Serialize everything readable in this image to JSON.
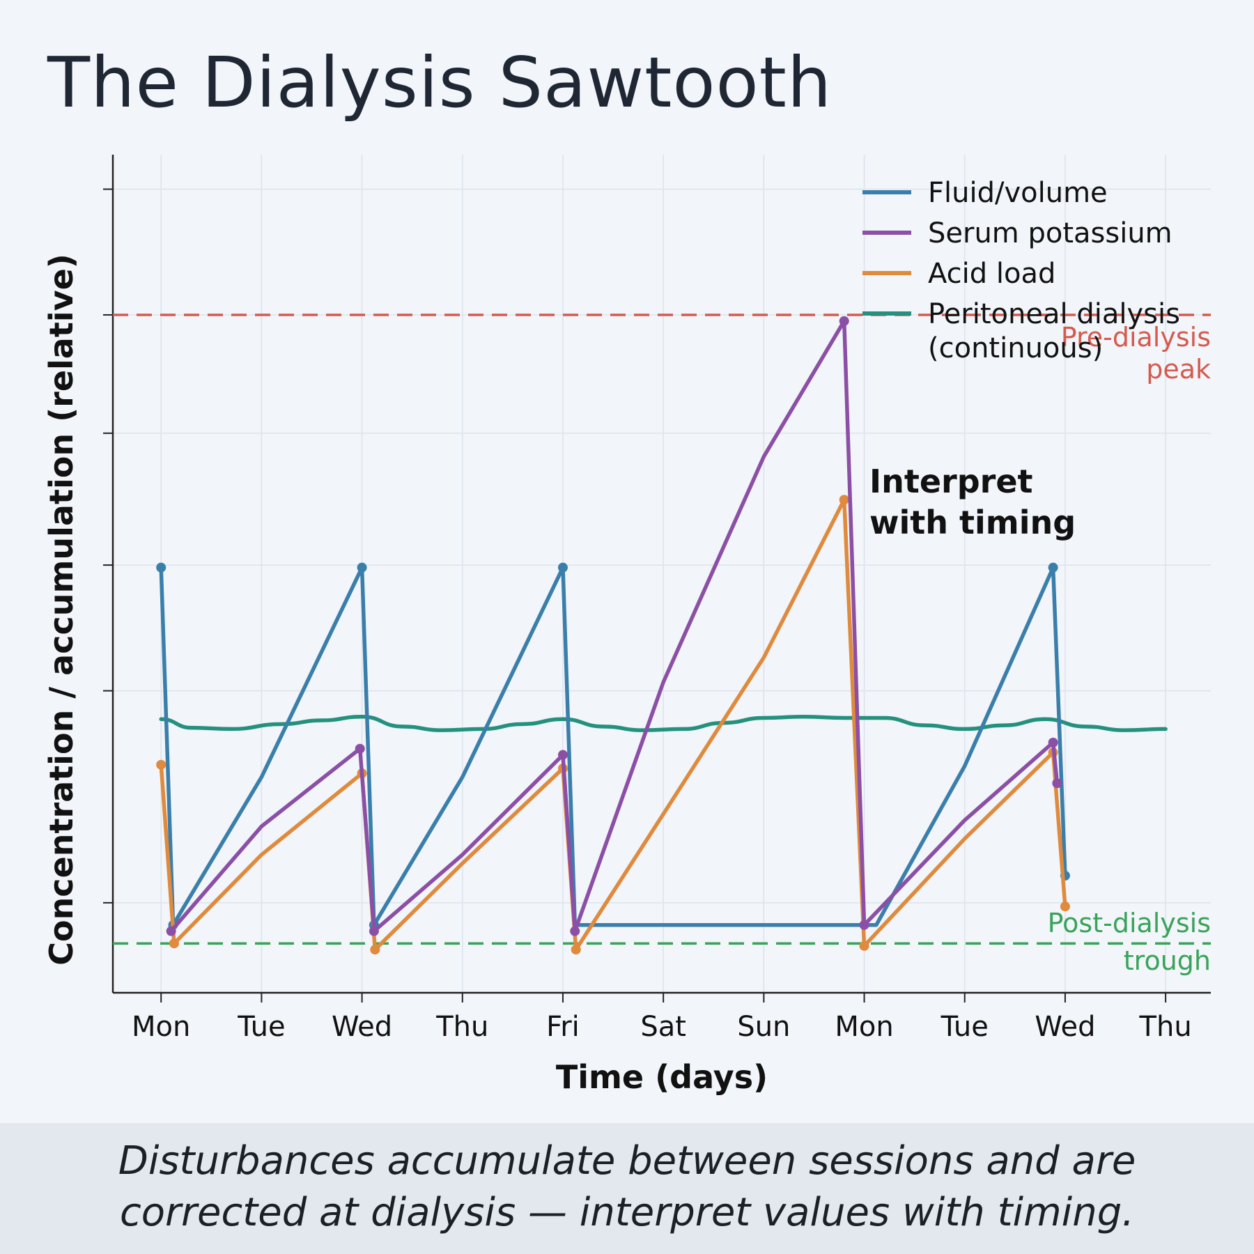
{
  "title": "The Dialysis Sawtooth",
  "caption": {
    "line1": "Disturbances accumulate between sessions and are",
    "line2": "corrected at dialysis — interpret values with timing."
  },
  "colors": {
    "fluid": "#3a7fab",
    "potassium": "#8b4fa6",
    "acid": "#df8a3c",
    "peritoneal": "#24917e",
    "peak": "#d55a4e",
    "trough": "#39a35a"
  },
  "chart_data": {
    "type": "line",
    "xlabel": "Time (days)",
    "ylabel": "Concentration / accumulation (relative)",
    "categories": [
      "Mon",
      "Tue",
      "Wed",
      "Thu",
      "Fri",
      "Sat",
      "Sun",
      "Mon",
      "Tue",
      "Wed",
      "Thu"
    ],
    "xlim": [
      -0.48,
      10.45
    ],
    "ylim": [
      -0.5,
      6.3
    ],
    "grid": true,
    "legend_position": "top-right",
    "series": [
      {
        "name": "Fluid/volume",
        "color_key": "fluid",
        "points": [
          [
            0,
            2.95
          ],
          [
            0.12,
            0.05
          ],
          [
            1,
            1.25
          ],
          [
            2,
            2.95
          ],
          [
            2.12,
            0.05
          ],
          [
            3,
            1.25
          ],
          [
            4,
            2.95
          ],
          [
            4.12,
            0.05
          ],
          [
            7,
            0.05
          ],
          [
            7.12,
            0.05
          ],
          [
            8,
            1.34
          ],
          [
            8.88,
            2.95
          ],
          [
            9,
            0.45
          ]
        ]
      },
      {
        "name": "Serum potassium",
        "color_key": "potassium",
        "points": [
          [
            0.1,
            0
          ],
          [
            1,
            0.85
          ],
          [
            1.98,
            1.48
          ],
          [
            2.12,
            0
          ],
          [
            3,
            0.62
          ],
          [
            4,
            1.43
          ],
          [
            4.12,
            0
          ],
          [
            5,
            2.02
          ],
          [
            6,
            3.85
          ],
          [
            6.8,
            4.95
          ],
          [
            7,
            0.05
          ],
          [
            8,
            0.9
          ],
          [
            8.88,
            1.53
          ],
          [
            8.92,
            1.2
          ]
        ]
      },
      {
        "name": "Acid load",
        "color_key": "acid",
        "points": [
          [
            0,
            1.35
          ],
          [
            0.13,
            -0.1
          ],
          [
            1,
            0.62
          ],
          [
            2,
            1.28
          ],
          [
            2.13,
            -0.15
          ],
          [
            3,
            0.55
          ],
          [
            4,
            1.32
          ],
          [
            4.13,
            -0.15
          ],
          [
            5,
            0.95
          ],
          [
            6,
            2.22
          ],
          [
            6.8,
            3.5
          ],
          [
            7,
            -0.12
          ],
          [
            8,
            0.75
          ],
          [
            8.88,
            1.45
          ],
          [
            9,
            0.2
          ]
        ]
      },
      {
        "name": "Peritoneal dialysis",
        "name_line2": "(continuous)",
        "color_key": "peritoneal",
        "points": [
          [
            0,
            1.72
          ],
          [
            0.3,
            1.65
          ],
          [
            0.7,
            1.64
          ],
          [
            1.2,
            1.68
          ],
          [
            1.6,
            1.71
          ],
          [
            2,
            1.74
          ],
          [
            2.4,
            1.66
          ],
          [
            2.8,
            1.63
          ],
          [
            3.2,
            1.64
          ],
          [
            3.6,
            1.68
          ],
          [
            4,
            1.72
          ],
          [
            4.4,
            1.66
          ],
          [
            4.8,
            1.63
          ],
          [
            5.2,
            1.64
          ],
          [
            5.6,
            1.69
          ],
          [
            6,
            1.73
          ],
          [
            6.4,
            1.74
          ],
          [
            6.8,
            1.73
          ],
          [
            7.2,
            1.73
          ],
          [
            7.6,
            1.67
          ],
          [
            8,
            1.64
          ],
          [
            8.4,
            1.67
          ],
          [
            8.8,
            1.72
          ],
          [
            9.2,
            1.66
          ],
          [
            9.6,
            1.63
          ],
          [
            10,
            1.64
          ]
        ]
      }
    ],
    "reference_lines": [
      {
        "label_line1": "Pre-dialysis",
        "label_line2": "peak",
        "y": 5.0,
        "color_key": "peak"
      },
      {
        "label_line1": "Post-dialysis",
        "label_line2": "trough",
        "y": -0.1,
        "color_key": "trough"
      }
    ],
    "annotation": {
      "line1": "Interpret",
      "line2": "with timing"
    }
  }
}
